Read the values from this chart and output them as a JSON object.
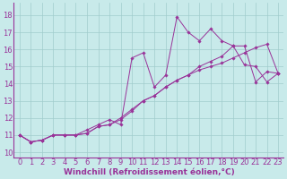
{
  "background_color": "#c8eaea",
  "grid_color": "#a0cccc",
  "line_color": "#993399",
  "marker_color": "#993399",
  "xlabel": "Windchill (Refroidissement éolien,°C)",
  "xlabel_fontsize": 6.5,
  "tick_fontsize": 6,
  "xlim": [
    -0.5,
    23.5
  ],
  "ylim": [
    9.7,
    18.7
  ],
  "xticks": [
    0,
    1,
    2,
    3,
    4,
    5,
    6,
    7,
    8,
    9,
    10,
    11,
    12,
    13,
    14,
    15,
    16,
    17,
    18,
    19,
    20,
    21,
    22,
    23
  ],
  "yticks": [
    10,
    11,
    12,
    13,
    14,
    15,
    16,
    17,
    18
  ],
  "series": [
    [
      11.0,
      10.6,
      10.7,
      11.0,
      11.0,
      11.0,
      11.1,
      11.5,
      11.6,
      11.9,
      12.4,
      13.0,
      13.3,
      13.8,
      14.2,
      14.5,
      14.8,
      15.0,
      15.2,
      15.5,
      15.8,
      16.1,
      16.3,
      14.6
    ],
    [
      11.0,
      10.6,
      10.7,
      11.0,
      11.0,
      11.0,
      11.1,
      11.5,
      11.6,
      12.0,
      12.5,
      13.0,
      13.3,
      13.8,
      14.2,
      14.5,
      15.0,
      15.3,
      15.6,
      16.2,
      16.2,
      14.1,
      14.7,
      14.6
    ],
    [
      11.0,
      10.6,
      10.7,
      11.0,
      11.0,
      11.0,
      11.3,
      11.6,
      11.9,
      11.6,
      15.5,
      15.8,
      13.8,
      14.5,
      17.9,
      17.0,
      16.5,
      17.2,
      16.5,
      16.2,
      15.1,
      15.0,
      14.1,
      14.6
    ]
  ]
}
